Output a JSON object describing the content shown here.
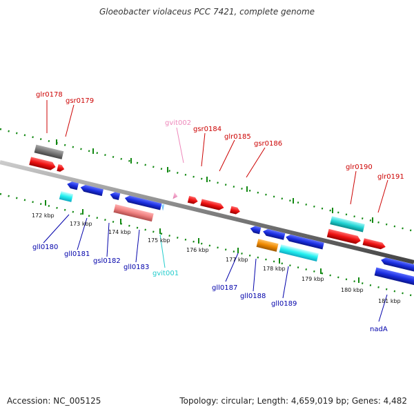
{
  "title": "Gloeobacter violaceus PCC 7421, complete genome",
  "footer": {
    "accession": "Accession: NC_005125",
    "summary": "Topology: circular; Length: 4,659,019 bp; Genes: 4,482"
  },
  "scale": {
    "ticks": [
      "172 kbp",
      "173 kbp",
      "174 kbp",
      "175 kbp",
      "176 kbp",
      "177 kbp",
      "178 kbp",
      "179 kbp",
      "180 kbp",
      "181 kbp"
    ]
  },
  "genes": {
    "top": [
      "glr0178",
      "gsr0179",
      "gvit002",
      "gsr0184",
      "glr0185",
      "gsr0186",
      "glr0190",
      "glr0191"
    ],
    "bottom": [
      "gll0180",
      "gll0181",
      "gsl0182",
      "gll0183",
      "gvit001",
      "gll0187",
      "gll0188",
      "gll0189",
      "nadA"
    ]
  },
  "colors": {
    "backbone": "#777777",
    "tick_green": "#118811",
    "forward_label": "#cc0000",
    "reverse_label": "#0000aa",
    "forward_gene": "#ee1111",
    "reverse_gene": "#1133dd",
    "trna": "#22cccc",
    "rrna": "#ee8888",
    "pseudo": "#777777",
    "pink": "#ee88bb",
    "orange": "#ee8800"
  }
}
